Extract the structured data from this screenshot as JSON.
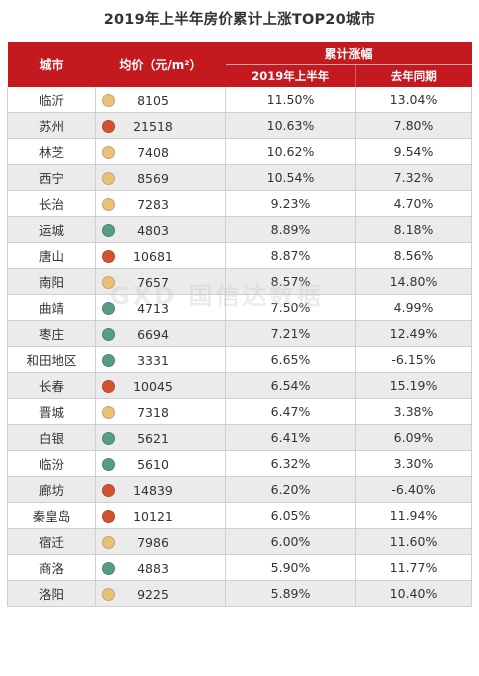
{
  "title": "2019年上半年房价累计上涨TOP20城市",
  "header": {
    "city": "城市",
    "price": "均价（元/m²）",
    "group": "累计涨幅",
    "h1_2019": "2019年上半年",
    "last_year": "去年同期"
  },
  "colors": {
    "header_bg": "#c3191f",
    "dot_yellow": "#e8c27a",
    "dot_red": "#d2532e",
    "dot_teal": "#5a9b88"
  },
  "watermark": "GXD 国信达数据",
  "rows": [
    {
      "city": "临沂",
      "dot": "yellow",
      "price": "8105",
      "h1_2019": "11.50%",
      "last_year": "13.04%"
    },
    {
      "city": "苏州",
      "dot": "red",
      "price": "21518",
      "h1_2019": "10.63%",
      "last_year": "7.80%"
    },
    {
      "city": "林芝",
      "dot": "yellow",
      "price": "7408",
      "h1_2019": "10.62%",
      "last_year": "9.54%"
    },
    {
      "city": "西宁",
      "dot": "yellow",
      "price": "8569",
      "h1_2019": "10.54%",
      "last_year": "7.32%"
    },
    {
      "city": "长治",
      "dot": "yellow",
      "price": "7283",
      "h1_2019": "9.23%",
      "last_year": "4.70%"
    },
    {
      "city": "运城",
      "dot": "teal",
      "price": "4803",
      "h1_2019": "8.89%",
      "last_year": "8.18%"
    },
    {
      "city": "唐山",
      "dot": "red",
      "price": "10681",
      "h1_2019": "8.87%",
      "last_year": "8.56%"
    },
    {
      "city": "南阳",
      "dot": "yellow",
      "price": "7657",
      "h1_2019": "8.57%",
      "last_year": "14.80%"
    },
    {
      "city": "曲靖",
      "dot": "teal",
      "price": "4713",
      "h1_2019": "7.50%",
      "last_year": "4.99%"
    },
    {
      "city": "枣庄",
      "dot": "teal",
      "price": "6694",
      "h1_2019": "7.21%",
      "last_year": "12.49%"
    },
    {
      "city": "和田地区",
      "dot": "teal",
      "price": "3331",
      "h1_2019": "6.65%",
      "last_year": "-6.15%"
    },
    {
      "city": "长春",
      "dot": "red",
      "price": "10045",
      "h1_2019": "6.54%",
      "last_year": "15.19%"
    },
    {
      "city": "晋城",
      "dot": "yellow",
      "price": "7318",
      "h1_2019": "6.47%",
      "last_year": "3.38%"
    },
    {
      "city": "白银",
      "dot": "teal",
      "price": "5621",
      "h1_2019": "6.41%",
      "last_year": "6.09%"
    },
    {
      "city": "临汾",
      "dot": "teal",
      "price": "5610",
      "h1_2019": "6.32%",
      "last_year": "3.30%"
    },
    {
      "city": "廊坊",
      "dot": "red",
      "price": "14839",
      "h1_2019": "6.20%",
      "last_year": "-6.40%"
    },
    {
      "city": "秦皇岛",
      "dot": "red",
      "price": "10121",
      "h1_2019": "6.05%",
      "last_year": "11.94%"
    },
    {
      "city": "宿迁",
      "dot": "yellow",
      "price": "7986",
      "h1_2019": "6.00%",
      "last_year": "11.60%"
    },
    {
      "city": "商洛",
      "dot": "teal",
      "price": "4883",
      "h1_2019": "5.90%",
      "last_year": "11.77%"
    },
    {
      "city": "洛阳",
      "dot": "yellow",
      "price": "9225",
      "h1_2019": "5.89%",
      "last_year": "10.40%"
    }
  ]
}
